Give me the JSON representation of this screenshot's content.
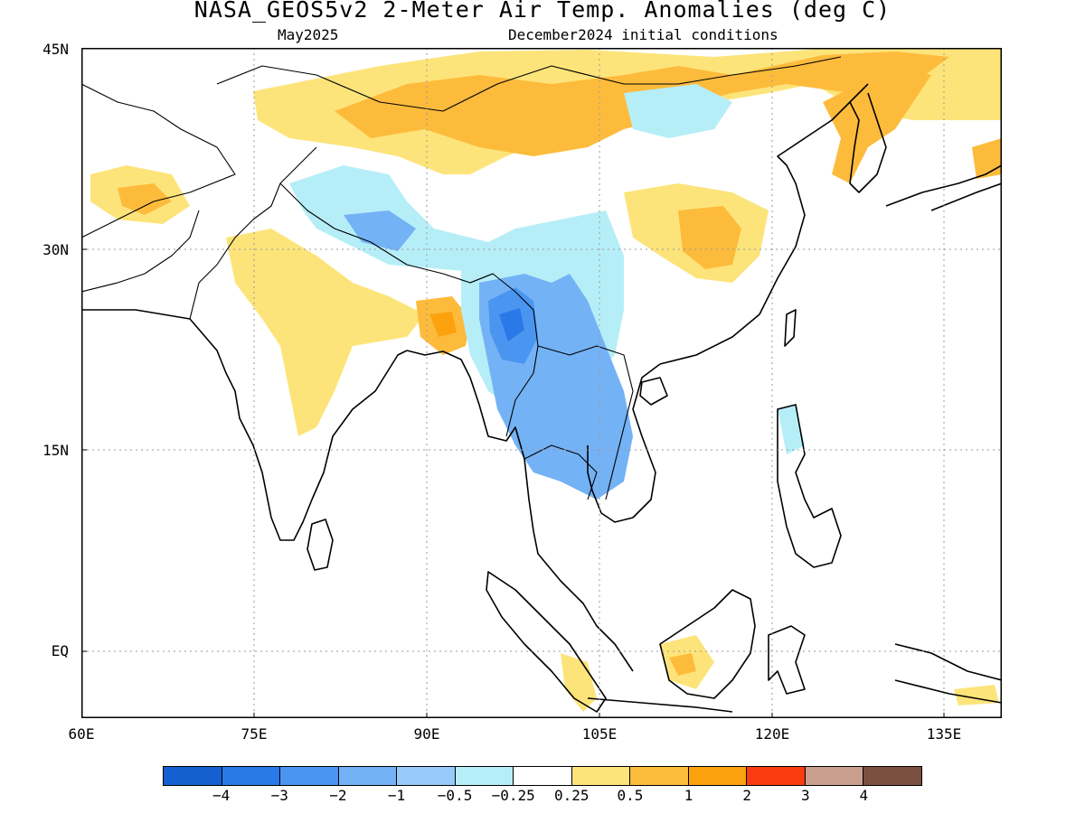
{
  "title": "NASA_GEOS5v2 2-Meter Air Temp. Anomalies (deg C)",
  "subtitle_left": "May2025",
  "subtitle_right": "December2024 initial conditions",
  "axes": {
    "lat_labels": [
      "45N",
      "30N",
      "15N",
      "EQ"
    ],
    "lon_labels": [
      "60E",
      "75E",
      "90E",
      "105E",
      "120E",
      "135E"
    ],
    "lat_range": [
      -5,
      45
    ],
    "lon_range": [
      60,
      140
    ],
    "grid": "dotted"
  },
  "legend": {
    "placement": "bottom",
    "labels": [
      "-4",
      "-3",
      "-2",
      "-1",
      "-0.5",
      "-0.25",
      "0.25",
      "0.5",
      "1",
      "2",
      "3",
      "4"
    ],
    "colors": [
      "#1560d0",
      "#2b78e8",
      "#4a95f0",
      "#74b2f6",
      "#97caf8",
      "#b6eef8",
      "#ffffff",
      "#fde47a",
      "#fdbb3c",
      "#fca20f",
      "#fb3b12",
      "#c9a090",
      "#7a5040"
    ]
  },
  "anomaly_regions": [
    {
      "id": "mongolia-north",
      "level": "0.5",
      "color": "#fde47a"
    },
    {
      "id": "mongolia-warm",
      "level": "1",
      "color": "#fdbb3c"
    },
    {
      "id": "northeast-korea",
      "level": "1",
      "color": "#fdbb3c"
    },
    {
      "id": "tibet-cool",
      "level": "-0.5",
      "color": "#b6eef8"
    },
    {
      "id": "myanmar-cold",
      "level": "-2",
      "color": "#4a95f0"
    },
    {
      "id": "indochina-cool",
      "level": "-1",
      "color": "#74b2f6"
    },
    {
      "id": "central-china-warm",
      "level": "1",
      "color": "#fdbb3c"
    },
    {
      "id": "bangladesh-warm",
      "level": "1",
      "color": "#fdbb3c"
    },
    {
      "id": "india-north-warm",
      "level": "0.5",
      "color": "#fde47a"
    },
    {
      "id": "afghanistan-warm",
      "level": "0.5",
      "color": "#fde47a"
    },
    {
      "id": "borneo-warm",
      "level": "0.5",
      "color": "#fde47a"
    }
  ]
}
